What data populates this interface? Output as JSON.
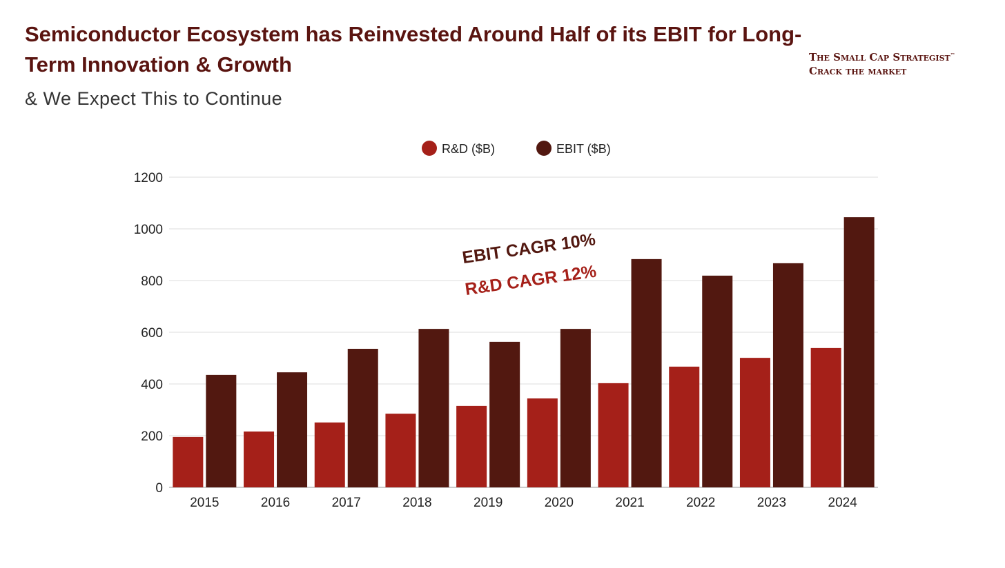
{
  "title": "Semiconductor Ecosystem has Reinvested Around Half of its EBIT for Long-Term Innovation & Growth",
  "subtitle": "& We Expect This to Continue",
  "logo": {
    "line1": "The Small Cap Strategist",
    "tm": "™",
    "line2": "Crack the market"
  },
  "annotations": {
    "ebit_cagr": "EBIT CAGR 10%",
    "rd_cagr": "R&D CAGR 12%"
  },
  "colors": {
    "rd": "#a52019",
    "ebit": "#521810",
    "title": "#5a1410"
  },
  "chart_data": {
    "type": "bar",
    "categories": [
      "2015",
      "2016",
      "2017",
      "2018",
      "2019",
      "2020",
      "2021",
      "2022",
      "2023",
      "2024"
    ],
    "series": [
      {
        "name": "R&D ($B)",
        "values": [
          195,
          216,
          251,
          285,
          315,
          344,
          403,
          467,
          501,
          539
        ]
      },
      {
        "name": "EBIT ($B)",
        "values": [
          435,
          445,
          536,
          613,
          563,
          613,
          883,
          819,
          867,
          1045
        ]
      }
    ],
    "ylim": [
      0,
      1200
    ],
    "yticks": [
      0,
      200,
      400,
      600,
      800,
      1000,
      1200
    ],
    "grid": true,
    "legend": "top-center",
    "xlabel": "",
    "ylabel": ""
  }
}
